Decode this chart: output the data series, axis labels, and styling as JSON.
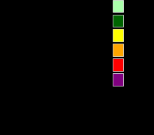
{
  "background_color": "#000000",
  "legend_colors": [
    "#aaffaa",
    "#006400",
    "#ffff00",
    "#ffa500",
    "#ff0000",
    "#800080"
  ],
  "country_colors": {
    "Iceland": "#006400",
    "Ireland": "#ffa500",
    "United Kingdom": "#ffff00",
    "Norway": "#006400",
    "Sweden": "#006400",
    "Finland": "#006400",
    "Denmark": "#ffff00",
    "Estonia": "#ffff00",
    "Latvia": "#ffff00",
    "Lithuania": "#ffff00",
    "Netherlands": "#ffff00",
    "Belgium": "#ffa500",
    "Luxembourg": "#ffff00",
    "Germany": "#ffff00",
    "France": "#ffa500",
    "Switzerland": "#ffa500",
    "Austria": "#ffff00",
    "Czech Republic": "#ffa500",
    "Slovakia": "#ffa500",
    "Hungary": "#ff0000",
    "Poland": "#ffa500",
    "Belarus": "#808080",
    "Ukraine": "#808080",
    "Moldova": "#808080",
    "Romania": "#ff0000",
    "Bulgaria": "#ff0000",
    "Serbia": "#ff0000",
    "Croatia": "#ff0000",
    "Bosnia and Herzegovina": "#ff0000",
    "Montenegro": "#ff0000",
    "North Macedonia": "#ff0000",
    "Albania": "#ff0000",
    "Kosovo": "#ff0000",
    "Slovenia": "#006400",
    "Portugal": "#ff0000",
    "Spain": "#ff0000",
    "Italy": "#ff0000",
    "Malta": "#808080",
    "Cyprus": "#808080",
    "Greece": "#ff0000",
    "Turkey": "#ff0000",
    "Russia": "#808080",
    "Armenia": "#808080",
    "Azerbaijan": "#808080",
    "Georgia": "#808080",
    "Kazakhstan": "#808080",
    "Libya": "#000000",
    "Tunisia": "#000000",
    "Algeria": "#000000",
    "Morocco": "#000000"
  },
  "figsize": [
    2.2,
    1.92
  ],
  "dpi": 100,
  "xlim": [
    -25,
    50
  ],
  "ylim": [
    33,
    73
  ]
}
